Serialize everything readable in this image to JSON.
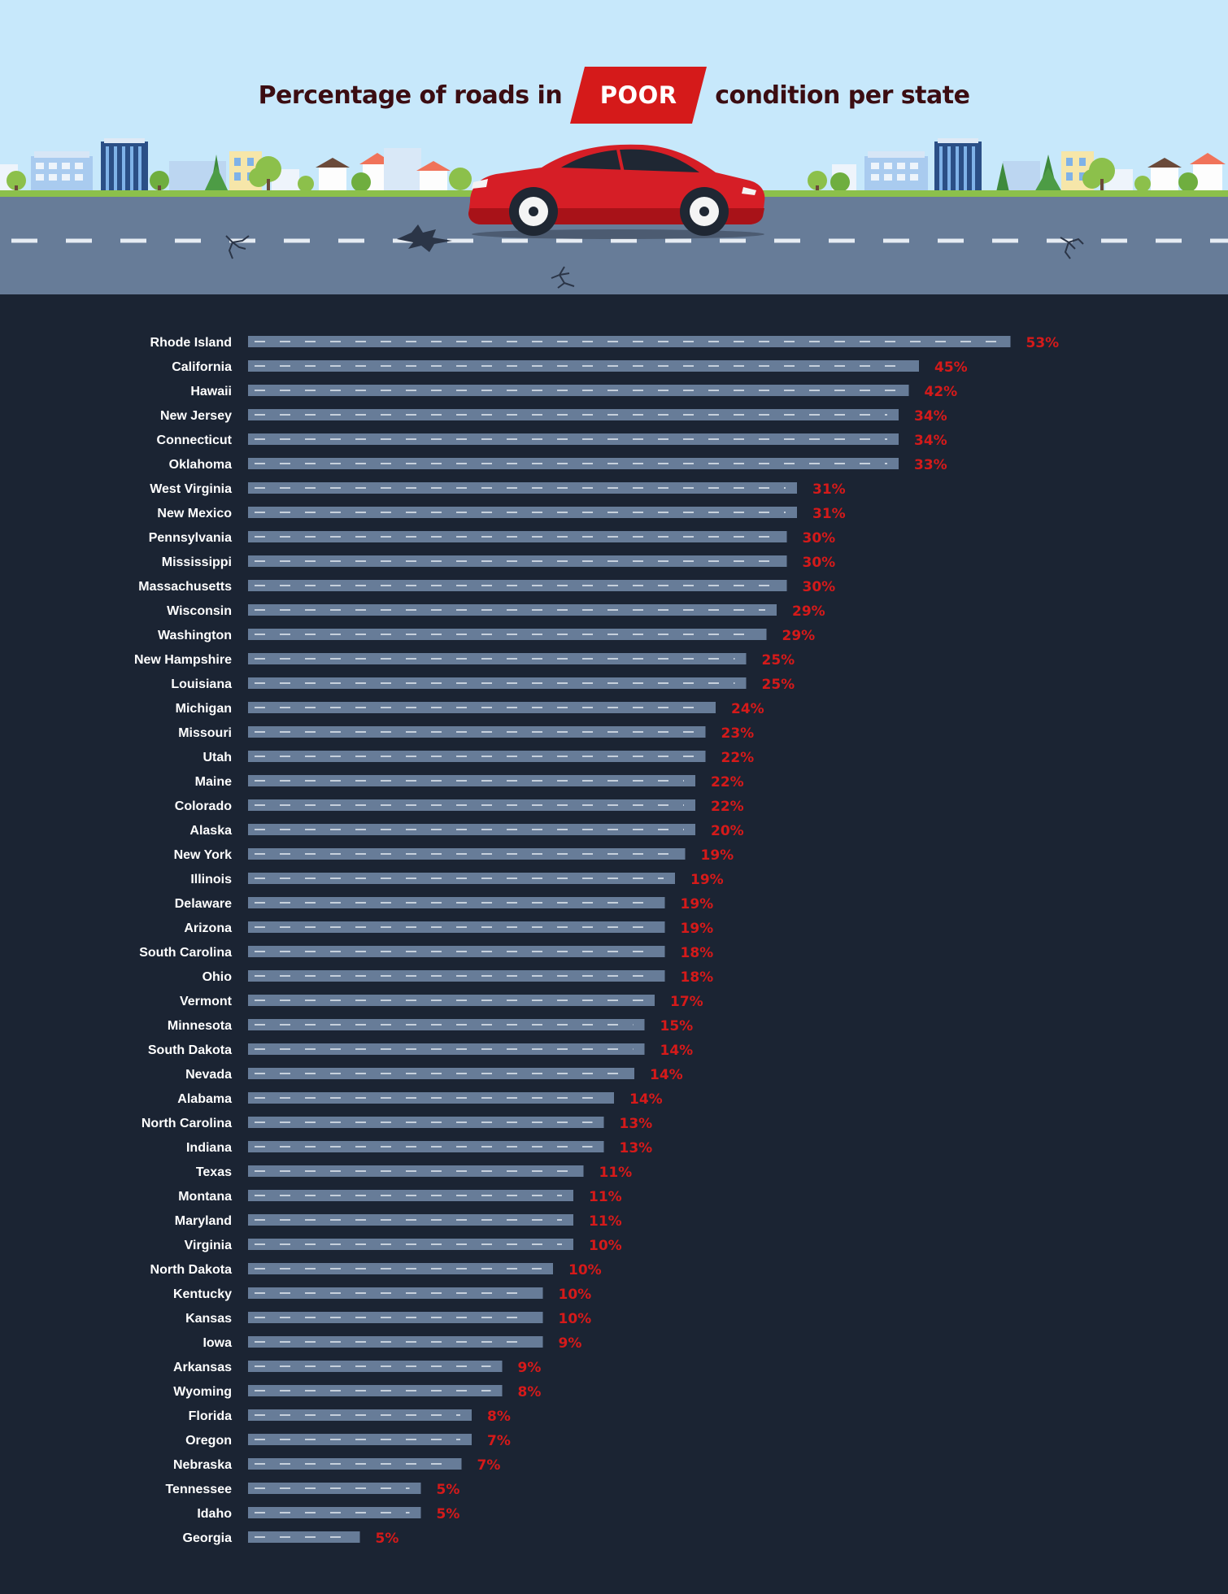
{
  "header": {
    "title_before": "Percentage of roads in",
    "title_badge": "POOR",
    "title_after": "condition per state"
  },
  "colors": {
    "background": "#1b2433",
    "bar": "#677c98",
    "bar_dash": "#e6ecf3",
    "value": "#d51a1a",
    "sky": "#c7e8fb",
    "road": "#677c98",
    "badge": "#d51a1a",
    "title": "#3b0d12"
  },
  "icons": [
    "car-icon",
    "building-icon",
    "tree-icon",
    "crack-icon"
  ],
  "chart_data": {
    "type": "bar",
    "orientation": "horizontal",
    "title": "Percentage of roads in POOR condition per state",
    "value_suffix": "%",
    "categories": [
      "Rhode Island",
      "California",
      "Hawaii",
      "New Jersey",
      "Connecticut",
      "Oklahoma",
      "West Virginia",
      "New Mexico",
      "Pennsylvania",
      "Mississippi",
      "Massachusetts",
      "Wisconsin",
      "Washington",
      "New Hampshire",
      "Louisiana",
      "Michigan",
      "Missouri",
      "Utah",
      "Maine",
      "Colorado",
      "Alaska",
      "New York",
      "Illinois",
      "Delaware",
      "Arizona",
      "South Carolina",
      "Ohio",
      "Vermont",
      "Minnesota",
      "South Dakota",
      "Nevada",
      "Alabama",
      "North Carolina",
      "Indiana",
      "Texas",
      "Montana",
      "Maryland",
      "Virginia",
      "North Dakota",
      "Kentucky",
      "Kansas",
      "Iowa",
      "Arkansas",
      "Wyoming",
      "Florida",
      "Oregon",
      "Nebraska",
      "Tennessee",
      "Idaho",
      "Georgia"
    ],
    "values": [
      53,
      45,
      42,
      34,
      34,
      33,
      31,
      31,
      30,
      30,
      30,
      29,
      29,
      25,
      25,
      24,
      23,
      22,
      22,
      22,
      20,
      19,
      19,
      19,
      19,
      18,
      18,
      17,
      15,
      14,
      14,
      14,
      13,
      13,
      11,
      11,
      11,
      10,
      10,
      10,
      10,
      9,
      9,
      8,
      8,
      7,
      7,
      5,
      5,
      5
    ],
    "bar_lengths": [
      75,
      66,
      65,
      64,
      64,
      64,
      54,
      54,
      53,
      53,
      53,
      52,
      51,
      49,
      49,
      46,
      45,
      45,
      44,
      44,
      44,
      43,
      42,
      41,
      41,
      41,
      41,
      40,
      39,
      39,
      38,
      36,
      35,
      35,
      33,
      32,
      32,
      32,
      30,
      29,
      29,
      29,
      25,
      25,
      22,
      22,
      21,
      17,
      17,
      11
    ],
    "grid": false,
    "legend": "none"
  }
}
